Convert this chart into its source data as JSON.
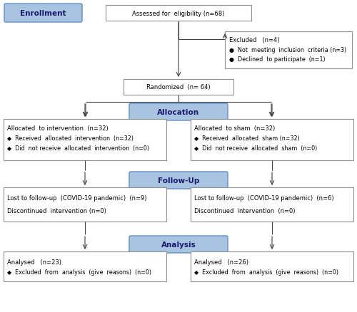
{
  "bg_color": "#ffffff",
  "box_border_color": "#909090",
  "blue_fill": "#a8c4e0",
  "blue_border": "#6090c0",
  "white_fill": "#ffffff",
  "arrow_color": "#404040",
  "enrollment_label": "Enrollment",
  "allocation_label": "Allocation",
  "followup_label": "Follow-Up",
  "analysis_label": "Analysis",
  "assess_text": "Assessed for  eligibility (n=68)",
  "excluded_title": "Excluded   (n=4)",
  "excluded_line1": "●  Not  meeting  inclusion  criteria (n=3)",
  "excluded_line2": "●  Declined  to participate  (n=1)",
  "randomized_text": "Randomized  (n= 64)",
  "alloc_left_line1": "Allocated  to intervention  (n=32)",
  "alloc_left_line2": "◆  Received  allocated  intervention  (n=32)",
  "alloc_left_line3": "◆  Did  not receive  allocated  intervention  (n=0)",
  "alloc_right_line1": "Allocated  to sham  (n=32)",
  "alloc_right_line2": "◆  Received  allocated  sham (n=32)",
  "alloc_right_line3": "◆  Did  not receive  allocated  sham  (n=0)",
  "follow_left_line1": "Lost to follow-up  (COVID-19 pandemic)  (n=9)",
  "follow_left_line2": "Discontinued  intervention (n=0)",
  "follow_right_line1": "Lost to follow-up  (COVID-19 pandemic)  (n=6)",
  "follow_right_line2": "Discontinued  intervention  (n=0)",
  "analysis_left_line1": "Analysed   (n=23)",
  "analysis_left_line2": "◆  Excluded  from  analysis  (give  reasons)  (n=0)",
  "analysis_right_line1": "Analysed   (n=26)",
  "analysis_right_line2": "◆  Excluded  from  analysis  (give  reasons)  (n=0)"
}
